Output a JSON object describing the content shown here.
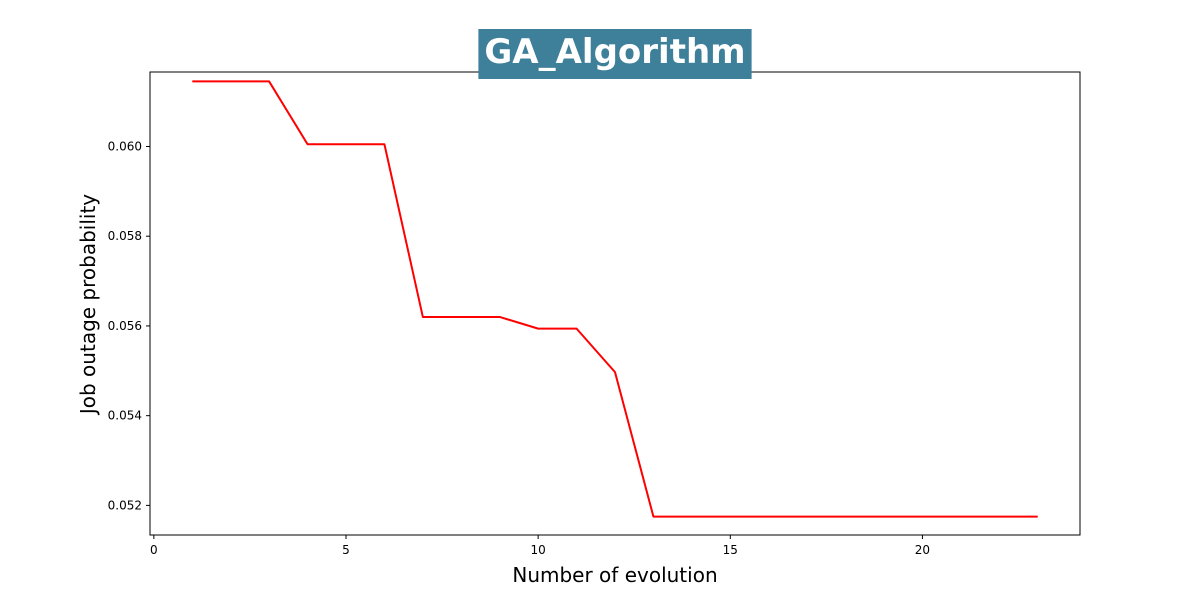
{
  "chart_data": {
    "type": "line",
    "title": "GA_Algorithm",
    "xlabel": "Number of evolution",
    "ylabel": "Job outage probability",
    "xlim": [
      -0.1,
      24.1
    ],
    "ylim": [
      0.05134,
      0.06166
    ],
    "xticks": [
      0,
      5,
      10,
      15,
      20
    ],
    "xtick_labels": [
      "0",
      "5",
      "10",
      "15",
      "20"
    ],
    "yticks": [
      0.052,
      0.054,
      0.056,
      0.058,
      0.06
    ],
    "ytick_labels": [
      "0.052",
      "0.054",
      "0.056",
      "0.058",
      "0.060"
    ],
    "grid": false,
    "series": [
      {
        "color": "#ff0000",
        "x": [
          1,
          2,
          3,
          4,
          5,
          6,
          7,
          8,
          9,
          10,
          11,
          12,
          13,
          14,
          15,
          16,
          17,
          18,
          19,
          20,
          21,
          22,
          23
        ],
        "y": [
          0.06145,
          0.06145,
          0.06145,
          0.06005,
          0.06005,
          0.06005,
          0.0562,
          0.0562,
          0.0562,
          0.05594,
          0.05594,
          0.05497,
          0.05175,
          0.05175,
          0.05175,
          0.05175,
          0.05175,
          0.05175,
          0.05175,
          0.05175,
          0.05175,
          0.05175,
          0.05175
        ]
      }
    ],
    "title_box_color": "#3e7f99",
    "axes_color": "#000000"
  }
}
